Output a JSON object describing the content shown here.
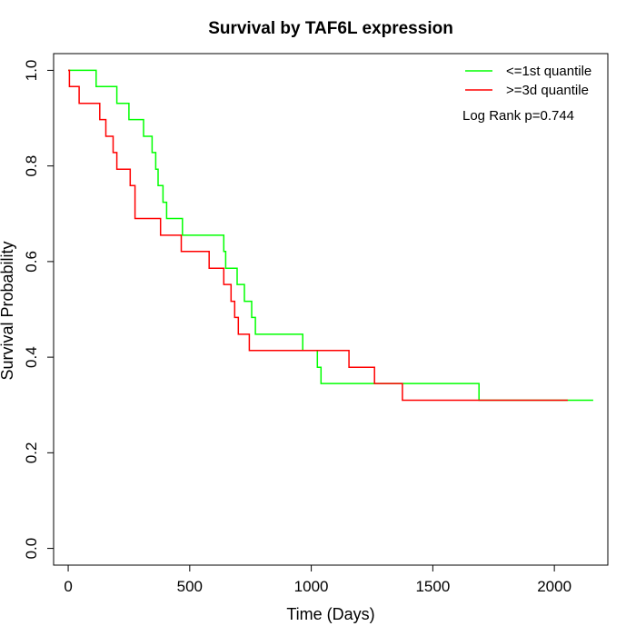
{
  "chart_data": {
    "type": "line",
    "title": "Survival by TAF6L expression",
    "xlabel": "Time (Days)",
    "ylabel": "Survival Probability",
    "xlim": [
      -60,
      2220
    ],
    "ylim": [
      -0.035,
      1.035
    ],
    "x_ticks": [
      0,
      500,
      1000,
      1500,
      2000
    ],
    "y_ticks": [
      0.0,
      0.2,
      0.4,
      0.6,
      0.8,
      1.0
    ],
    "x_tick_labels": [
      "0",
      "500",
      "1000",
      "1500",
      "2000"
    ],
    "y_tick_labels": [
      "0.0",
      "0.2",
      "0.4",
      "0.6",
      "0.8",
      "1.0"
    ],
    "grid": false,
    "legend_position": "top-right",
    "annotation": "Log Rank p=0.744",
    "series": [
      {
        "name": "<=1st quantile",
        "color": "#00ff00",
        "step_type": "post",
        "points": [
          [
            0,
            1.0
          ],
          [
            115,
            0.966
          ],
          [
            200,
            0.931
          ],
          [
            250,
            0.897
          ],
          [
            310,
            0.862
          ],
          [
            345,
            0.828
          ],
          [
            360,
            0.793
          ],
          [
            370,
            0.759
          ],
          [
            390,
            0.724
          ],
          [
            405,
            0.69
          ],
          [
            470,
            0.655
          ],
          [
            640,
            0.621
          ],
          [
            648,
            0.586
          ],
          [
            695,
            0.552
          ],
          [
            725,
            0.517
          ],
          [
            755,
            0.483
          ],
          [
            770,
            0.448
          ],
          [
            965,
            0.414
          ],
          [
            1025,
            0.379
          ],
          [
            1040,
            0.345
          ],
          [
            1690,
            0.31
          ],
          [
            2160,
            0.31
          ]
        ]
      },
      {
        "name": ">=3d quantile",
        "color": "#ff0000",
        "step_type": "post",
        "points": [
          [
            0,
            1.0
          ],
          [
            5,
            0.966
          ],
          [
            45,
            0.931
          ],
          [
            130,
            0.897
          ],
          [
            155,
            0.862
          ],
          [
            185,
            0.828
          ],
          [
            200,
            0.793
          ],
          [
            255,
            0.759
          ],
          [
            275,
            0.69
          ],
          [
            380,
            0.655
          ],
          [
            465,
            0.621
          ],
          [
            580,
            0.586
          ],
          [
            640,
            0.552
          ],
          [
            670,
            0.517
          ],
          [
            685,
            0.483
          ],
          [
            700,
            0.448
          ],
          [
            745,
            0.414
          ],
          [
            1155,
            0.379
          ],
          [
            1260,
            0.345
          ],
          [
            1375,
            0.31
          ],
          [
            2055,
            0.31
          ]
        ]
      }
    ]
  }
}
